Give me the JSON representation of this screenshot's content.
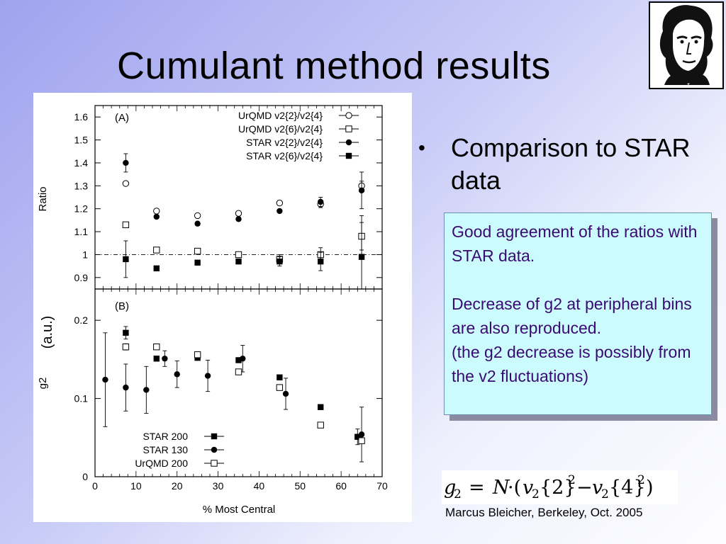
{
  "slide": {
    "title": "Cumulant method results",
    "bullet": "Comparison to STAR data",
    "note_line1": "Good agreement of the ratios with STAR data.",
    "note_line2": "Decrease of g2 at peripheral bins are also reproduced.",
    "note_line3": "(the g2 decrease is possibly from the v2 fluctuations)",
    "formula": "g2 = N·(v2{2}² − v2{4}²)",
    "footer": "Marcus Bleicher, Berkeley, Oct. 2005",
    "portrait_icon": "goethe-portrait-logo"
  },
  "colors": {
    "note_text": "#3a0a73",
    "note_background": "#ccfbfe"
  },
  "chart_data": [
    {
      "type": "scatter",
      "panel_label": "(A)",
      "ylabel": "Ratio",
      "xlim": [
        0,
        70
      ],
      "ylim": [
        0.85,
        1.65
      ],
      "y_ticks": [
        "0.9",
        "1",
        "1.1",
        "1.2",
        "1.3",
        "1.4",
        "1.5",
        "1.6"
      ],
      "reference_line": 1,
      "legend_position": "top-right",
      "series": [
        {
          "name": "UrQMD v2{2}/v2{4}",
          "marker": "open-circle",
          "x": [
            7.5,
            15,
            25,
            35,
            45,
            55,
            65
          ],
          "y": [
            1.31,
            1.19,
            1.17,
            1.18,
            1.225,
            1.22,
            1.3
          ],
          "err": [
            0.01,
            0.01,
            0.01,
            0.01,
            0.01,
            0.015,
            0.02
          ]
        },
        {
          "name": "UrQMD v2{6}/v2{4}",
          "marker": "open-square",
          "x": [
            7.5,
            15,
            25,
            35,
            45,
            55,
            65
          ],
          "y": [
            1.13,
            1.02,
            1.015,
            1.0,
            0.98,
            1.0,
            1.08
          ],
          "err": [
            0.01,
            0.01,
            0.01,
            0.01,
            0.02,
            0.03,
            0.06
          ]
        },
        {
          "name": "STAR v2{2}/v2{4}",
          "marker": "filled-circle",
          "x": [
            7.5,
            15,
            25,
            35,
            45,
            55,
            65
          ],
          "y": [
            1.4,
            1.165,
            1.135,
            1.155,
            1.19,
            1.23,
            1.28
          ],
          "err": [
            0.04,
            0.005,
            0.005,
            0.005,
            0.005,
            0.02,
            0.08
          ]
        },
        {
          "name": "STAR v2{6}/v2{4}",
          "marker": "filled-square",
          "x": [
            7.5,
            15,
            25,
            35,
            45,
            55,
            65
          ],
          "y": [
            0.98,
            0.94,
            0.965,
            0.97,
            0.97,
            0.97,
            0.99
          ],
          "err": [
            0.08,
            0.005,
            0.005,
            0.005,
            0.02,
            0.04,
            0.18
          ]
        }
      ]
    },
    {
      "type": "scatter",
      "panel_label": "(B)",
      "ylabel": "g2",
      "ylabel_extra": "(a.u.)",
      "xlabel": "% Most Central",
      "xlim": [
        0,
        70
      ],
      "ylim": [
        0,
        0.24
      ],
      "x_ticks": [
        "0",
        "10",
        "20",
        "30",
        "40",
        "50",
        "60",
        "70"
      ],
      "y_ticks": [
        "0",
        "0.1",
        "0.2"
      ],
      "legend_position": "bottom-left",
      "series": [
        {
          "name": "STAR 200",
          "marker": "filled-square",
          "x": [
            7.5,
            15,
            25,
            35,
            45,
            55,
            64
          ],
          "y": [
            0.184,
            0.151,
            0.152,
            0.149,
            0.127,
            0.089,
            0.051
          ],
          "err": [
            0.008,
            0.003,
            0.003,
            0.003,
            0.003,
            0.003,
            0.01
          ]
        },
        {
          "name": "STAR 130",
          "marker": "filled-circle",
          "x": [
            2.5,
            7.5,
            12.5,
            17,
            20,
            27.5,
            36,
            46.5,
            65
          ],
          "y": [
            0.124,
            0.114,
            0.111,
            0.151,
            0.131,
            0.129,
            0.151,
            0.106,
            0.054
          ],
          "err": [
            0.06,
            0.03,
            0.03,
            0.01,
            0.017,
            0.02,
            0.017,
            0.02,
            0.035
          ]
        },
        {
          "name": "UrQMD 200",
          "marker": "open-square",
          "x": [
            7.5,
            15,
            25,
            35,
            45,
            55,
            65
          ],
          "y": [
            0.166,
            0.166,
            0.156,
            0.134,
            0.114,
            0.066,
            0.046
          ],
          "err": [
            0.004,
            0.003,
            0.003,
            0.003,
            0.003,
            0.003,
            0.003
          ]
        }
      ]
    }
  ]
}
